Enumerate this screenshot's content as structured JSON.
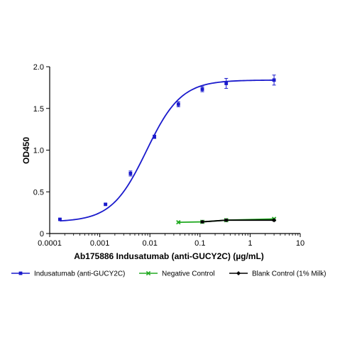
{
  "chart_data": {
    "type": "scatter",
    "xlabel": "Ab175886 Indusatumab (anti-GUCY2C) (µg/mL)",
    "ylabel": "OD450",
    "x_scale": "log",
    "xlim": [
      0.0001,
      10
    ],
    "ylim": [
      0,
      2.0
    ],
    "x_ticks": [
      0.0001,
      0.001,
      0.01,
      0.1,
      1,
      10
    ],
    "x_tick_labels": [
      "0.0001",
      "0.001",
      "0.01",
      "0.1",
      "1",
      "10"
    ],
    "y_ticks": [
      0,
      0.5,
      1.0,
      1.5,
      2.0
    ],
    "y_tick_labels": [
      "0",
      "0.5",
      "1.0",
      "1.5",
      "2.0"
    ],
    "grid": false,
    "legend_position": "bottom",
    "series": [
      {
        "name": "Indusatumab (anti-GUCY2C)",
        "color": "#1a1acc",
        "marker": "square",
        "x": [
          0.00016,
          0.0013,
          0.0041,
          0.0123,
          0.037,
          0.111,
          0.333,
          3.0
        ],
        "y": [
          0.17,
          0.35,
          0.72,
          1.16,
          1.55,
          1.73,
          1.8,
          1.84
        ],
        "err": [
          0.01,
          0.01,
          0.03,
          0.02,
          0.03,
          0.03,
          0.06,
          0.06
        ],
        "fit": {
          "bottom": 0.14,
          "top": 1.84,
          "ec50": 0.0085,
          "hill": 1.25
        }
      },
      {
        "name": "Negative Control",
        "color": "#22aa22",
        "marker": "x",
        "x": [
          0.037,
          0.111,
          0.333,
          3.0
        ],
        "y": [
          0.135,
          0.14,
          0.16,
          0.175
        ],
        "err": [
          0.01,
          0.01,
          0.01,
          0.01
        ]
      },
      {
        "name": "Blank Control (1% Milk)",
        "color": "#000000",
        "marker": "diamond",
        "x": [
          0.111,
          0.333,
          3.0
        ],
        "y": [
          0.14,
          0.16,
          0.16
        ],
        "err": [
          0.01,
          0.01,
          0.01
        ]
      }
    ]
  }
}
